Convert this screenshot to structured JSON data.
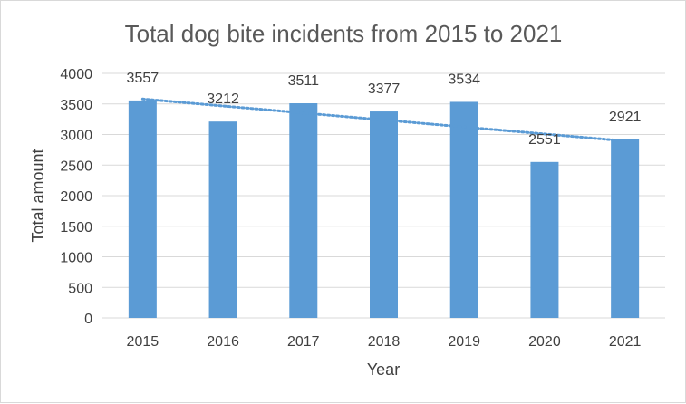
{
  "chart_data": {
    "type": "bar",
    "title": "Total dog bite incidents from 2015 to 2021",
    "xlabel": "Year",
    "ylabel": "Total amount",
    "categories": [
      "2015",
      "2016",
      "2017",
      "2018",
      "2019",
      "2020",
      "2021"
    ],
    "values": [
      3557,
      3212,
      3511,
      3377,
      3534,
      2551,
      2921
    ],
    "ylim": [
      0,
      4000
    ],
    "yticks": [
      0,
      500,
      1000,
      1500,
      2000,
      2500,
      3000,
      3500,
      4000
    ],
    "grid": true,
    "trendline": {
      "type": "linear",
      "style": "dotted"
    },
    "colors": {
      "bar": "#5b9bd5",
      "trendline": "#5b9bd5",
      "grid": "#d9d9d9"
    }
  }
}
